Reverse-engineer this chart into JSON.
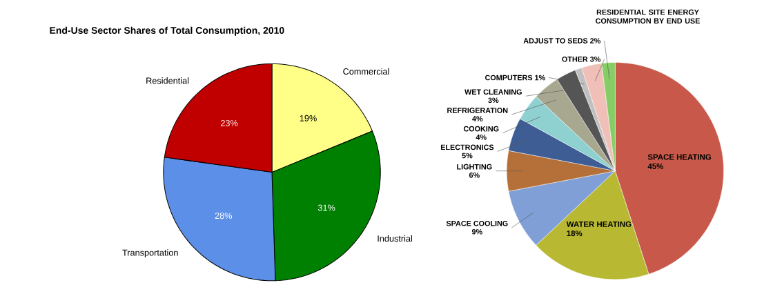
{
  "chart_data": [
    {
      "type": "pie",
      "title": "End-Use Sector Shares of Total Consumption, 2010",
      "categories": [
        "Commercial",
        "Industrial",
        "Transportation",
        "Residential"
      ],
      "values": [
        19,
        31,
        28,
        23
      ],
      "value_labels": [
        "19%",
        "31%",
        "28%",
        "23%"
      ],
      "colors": [
        "#ffff88",
        "#008000",
        "#5b8fe8",
        "#c00000"
      ]
    },
    {
      "type": "pie",
      "title": "RESIDENTIAL SITE ENERGY CONSUMPTION BY END USE",
      "categories": [
        "SPACE HEATING",
        "WATER HEATING",
        "SPACE COOLING",
        "LIGHTING",
        "ELECTRONICS",
        "COOKING",
        "REFRIGERATION",
        "WET CLEANING",
        "COMPUTERS",
        "OTHER",
        "ADJUST TO SEDS"
      ],
      "values": [
        45,
        18,
        9,
        6,
        5,
        4,
        4,
        3,
        1,
        3,
        2
      ],
      "value_labels": [
        "45%",
        "18%",
        "9%",
        "6%",
        "5%",
        "4%",
        "4%",
        "3%",
        "1%",
        "3%",
        "2%"
      ],
      "colors": [
        "#c8594a",
        "#b8b832",
        "#7f9fd6",
        "#b5703a",
        "#3d5d94",
        "#8fd0d0",
        "#a8a890",
        "#555555",
        "#c0c0c0",
        "#f0c0b8",
        "#88cc66"
      ]
    }
  ]
}
